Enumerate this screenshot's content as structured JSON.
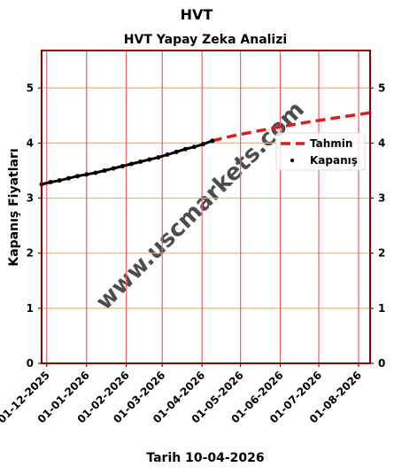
{
  "chart_data": {
    "type": "line",
    "suptitle": "HVT",
    "title": "HVT Yapay Zeka Analizi",
    "xlabel": "Tarih 10-04-2026",
    "ylabel": "Kapanış Fiyatları",
    "watermark": "www.uscmarkets.com",
    "xlim": [
      "2025-11-27",
      "2026-08-10"
    ],
    "ylim": [
      0,
      5.68
    ],
    "xticks": [
      {
        "value": "2025-12-01",
        "label": "01-12-2025"
      },
      {
        "value": "2026-01-01",
        "label": "01-01-2026"
      },
      {
        "value": "2026-02-01",
        "label": "01-02-2026"
      },
      {
        "value": "2026-03-01",
        "label": "01-03-2026"
      },
      {
        "value": "2026-04-01",
        "label": "01-04-2026"
      },
      {
        "value": "2026-05-01",
        "label": "01-05-2026"
      },
      {
        "value": "2026-06-01",
        "label": "01-06-2026"
      },
      {
        "value": "2026-07-01",
        "label": "01-07-2026"
      },
      {
        "value": "2026-08-01",
        "label": "01-08-2026"
      }
    ],
    "yticks": [
      0,
      1,
      2,
      3,
      4,
      5
    ],
    "grid": true,
    "legend": "upper right",
    "series": [
      {
        "name": "Tahmin",
        "color": "#e31a1c",
        "style": "dashed",
        "x": [
          "2026-04-09",
          "2026-04-25",
          "2026-05-15",
          "2026-06-05",
          "2026-06-25",
          "2026-07-15",
          "2026-08-10"
        ],
        "values": [
          4.04,
          4.13,
          4.22,
          4.31,
          4.39,
          4.46,
          4.55
        ]
      },
      {
        "name": "Kapanış",
        "color": "#000000",
        "style": "dots",
        "x": [
          "2025-11-27",
          "2025-12-04",
          "2025-12-11",
          "2025-12-18",
          "2025-12-25",
          "2026-01-01",
          "2026-01-08",
          "2026-01-15",
          "2026-01-22",
          "2026-01-29",
          "2026-02-05",
          "2026-02-12",
          "2026-02-19",
          "2026-02-26",
          "2026-03-05",
          "2026-03-12",
          "2026-03-19",
          "2026-03-26",
          "2026-04-02",
          "2026-04-09"
        ],
        "values": [
          3.25,
          3.29,
          3.32,
          3.36,
          3.4,
          3.43,
          3.46,
          3.5,
          3.54,
          3.58,
          3.62,
          3.66,
          3.7,
          3.74,
          3.79,
          3.84,
          3.89,
          3.93,
          3.98,
          4.04
        ]
      }
    ]
  }
}
